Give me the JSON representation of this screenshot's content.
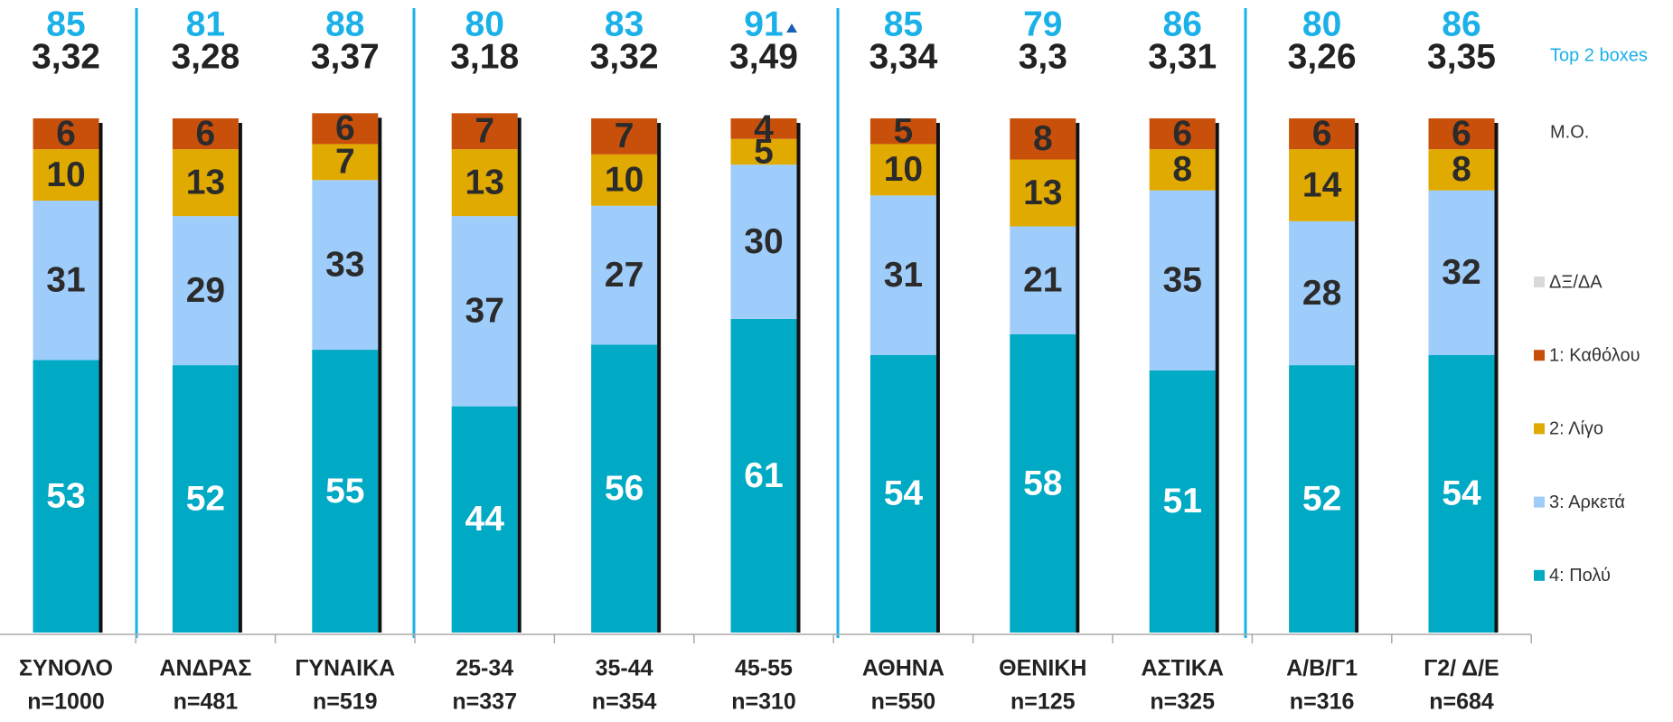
{
  "chart_data": {
    "type": "stacked_bar",
    "categories": [
      "ΣΥΝΟΛΟ",
      "ΑΝΔΡΑΣ",
      "ΓΥΝΑΙΚΑ",
      "25-34",
      "35-44",
      "45-55",
      "ΑΘΗΝΑ",
      "ΘΕΝΙΚΗ",
      "ΑΣΤΙΚΑ",
      "Α/Β/Γ1",
      "Γ2/ Δ/Ε"
    ],
    "category_bases": [
      "n=1000",
      "n=481",
      "n=519",
      "n=337",
      "n=354",
      "n=310",
      "n=550",
      "n=125",
      "n=325",
      "n=316",
      "n=684"
    ],
    "top2_label": "Top 2 boxes",
    "top2": [
      85,
      81,
      88,
      80,
      83,
      91,
      85,
      79,
      86,
      80,
      86
    ],
    "mean_label": "M.O.",
    "mean": [
      3.32,
      3.28,
      3.37,
      3.18,
      3.32,
      3.49,
      3.34,
      3.3,
      3.31,
      3.26,
      3.35
    ],
    "mean_value_labels": [
      "3,32",
      "3,28",
      "3,37",
      "3,18",
      "3,32",
      "3,49",
      "3,34",
      "3,3",
      "3,31",
      "3,26",
      "3,35"
    ],
    "ylim": [
      0,
      100
    ],
    "series": [
      {
        "name": "4: Πολύ",
        "color": "#00a9c4",
        "values": [
          53,
          52,
          55,
          44,
          56,
          61,
          54,
          58,
          51,
          52,
          54
        ]
      },
      {
        "name": "3: Αρκετά",
        "color": "#9fcdfb",
        "values": [
          31,
          29,
          33,
          37,
          27,
          30,
          31,
          21,
          35,
          28,
          32
        ]
      },
      {
        "name": "2: Λίγο",
        "color": "#e1aa00",
        "values": [
          10,
          13,
          7,
          13,
          10,
          5,
          10,
          13,
          8,
          14,
          8
        ]
      },
      {
        "name": "1: Καθόλου",
        "color": "#c9500b",
        "values": [
          6,
          6,
          6,
          7,
          7,
          4,
          5,
          8,
          6,
          6,
          6
        ]
      },
      {
        "name": "ΔΞ/ΔΑ",
        "color": "#d9d9d9",
        "values": [
          0,
          0,
          0,
          0,
          0,
          0,
          0,
          0,
          0,
          0,
          0
        ]
      }
    ]
  }
}
